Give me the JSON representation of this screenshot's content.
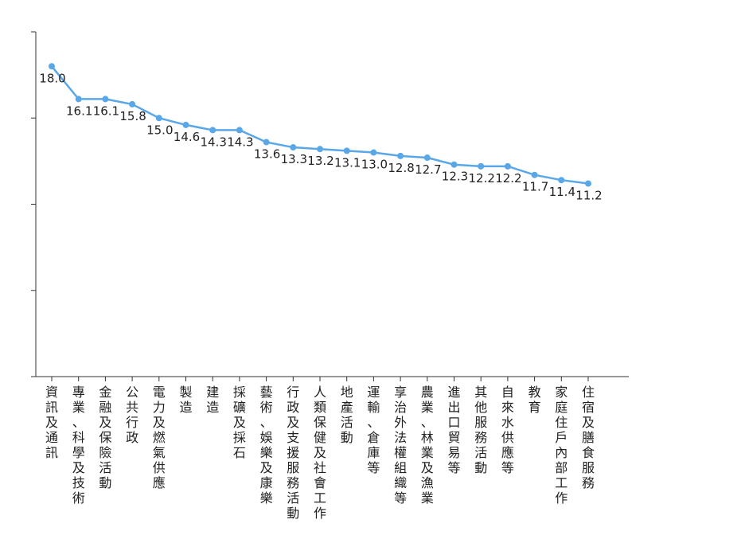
{
  "chart_data": {
    "type": "line",
    "title": "",
    "xlabel": "",
    "ylabel": "",
    "ylim": [
      0,
      20
    ],
    "grid": false,
    "legend": "none",
    "show_y_tick_labels": false,
    "series_color": "#5aa7e8",
    "categories": [
      "資訊及通訊",
      "專業、科學及技術",
      "金融及保險活動",
      "公共行政",
      "電力及燃氣供應",
      "製造",
      "建造",
      "採礦及採石",
      "藝術、娛樂及康樂",
      "行政及支援服務活動",
      "人類保健及社會工作",
      "地產活動",
      "運輸、倉庫等",
      "享治外法權組織等",
      "農業、林業及漁業",
      "進出口貿易等",
      "其他服務活動",
      "自來水供應等",
      "教育",
      "家庭住戶內部工作",
      "住宿及膳食服務"
    ],
    "series": [
      {
        "values": [
          18.0,
          16.1,
          16.1,
          15.8,
          15.0,
          14.6,
          14.3,
          14.3,
          13.6,
          13.3,
          13.2,
          13.1,
          13.0,
          12.8,
          12.7,
          12.3,
          12.2,
          12.2,
          11.7,
          11.4,
          11.2
        ],
        "labels": [
          "18.0",
          "16.1",
          "16.1",
          "15.8",
          "15.0",
          "14.6",
          "14.3",
          "14.3",
          "13.6",
          "13.3",
          "13.2",
          "13.1",
          "13.0",
          "12.8",
          "12.7",
          "12.3",
          "12.2",
          "12.2",
          "11.7",
          "11.4",
          "11.2"
        ]
      }
    ]
  }
}
